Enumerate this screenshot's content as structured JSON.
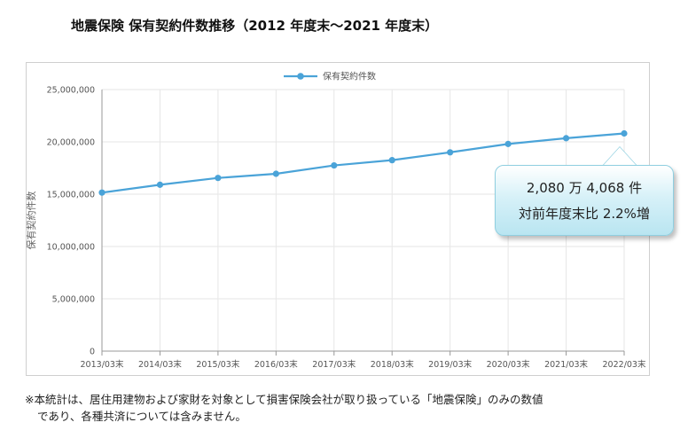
{
  "title": "地震保険 保有契約件数推移（2012 年度末～2021 年度末）",
  "chart_data": {
    "type": "line",
    "categories": [
      "2013/03末",
      "2014/03末",
      "2015/03末",
      "2016/03末",
      "2017/03末",
      "2018/03末",
      "2019/03末",
      "2020/03末",
      "2021/03末",
      "2022/03末"
    ],
    "series": [
      {
        "name": "保有契約件数",
        "values": [
          15150000,
          15900000,
          16550000,
          16950000,
          17750000,
          18250000,
          19000000,
          19800000,
          20350000,
          20804068
        ],
        "color": "#4aa3d8"
      }
    ],
    "ylabel": "保有契約件数",
    "ylim": [
      0,
      25000000
    ],
    "yticks": [
      0,
      5000000,
      10000000,
      15000000,
      20000000,
      25000000
    ],
    "ytick_labels": [
      "0",
      "5,000,000",
      "10,000,000",
      "15,000,000",
      "20,000,000",
      "25,000,000"
    ],
    "grid": true,
    "legend": "top-center"
  },
  "callout": {
    "line1": "2,080 万 4,068 件",
    "line2": "対前年度末比  2.2%増"
  },
  "note": {
    "line1": "※本統計は、居住用建物および家財を対象として損害保険会社が取り扱っている「地震保険」のみの数値",
    "line2": "であり、各種共済については含みません。"
  }
}
